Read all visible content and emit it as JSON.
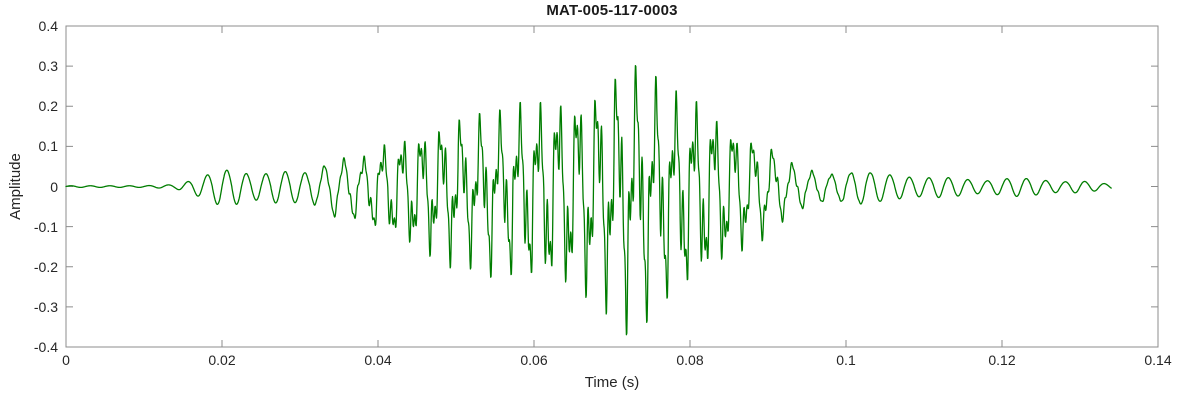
{
  "chart_data": {
    "type": "line",
    "title": "MAT-005-117-0003",
    "xlabel": "Time (s)",
    "ylabel": "Amplitude",
    "xlim": [
      0,
      0.14
    ],
    "ylim": [
      -0.4,
      0.4
    ],
    "x_ticks": [
      0,
      0.02,
      0.04,
      0.06,
      0.08,
      0.1,
      0.12,
      0.14
    ],
    "x_tick_labels": [
      "0",
      "0.02",
      "0.04",
      "0.06",
      "0.08",
      "0.1",
      "0.12",
      "0.14"
    ],
    "y_ticks": [
      -0.4,
      -0.3,
      -0.2,
      -0.1,
      0,
      0.1,
      0.2,
      0.3,
      0.4
    ],
    "y_tick_labels": [
      "-0.4",
      "-0.3",
      "-0.2",
      "-0.1",
      "0",
      "0.1",
      "0.2",
      "0.3",
      "0.4"
    ],
    "grid": false,
    "legend": null,
    "line_color": "#007d00",
    "axis_box_color": "#8c8c8c",
    "text_color": "#262626",
    "background": "#ffffff",
    "signal": {
      "description": "amplitude-modulated oscillatory burst (acoustic-emission-like waveform)",
      "duration_s": 0.134,
      "sample_step_s": 5e-05,
      "peak_positive": 0.32,
      "peak_negative": -0.39,
      "peak_time_s": 0.072,
      "quiet_until_s": 0.014,
      "envelope": [
        [
          0.0,
          0.004
        ],
        [
          0.01,
          0.004
        ],
        [
          0.014,
          0.01
        ],
        [
          0.016,
          0.03
        ],
        [
          0.018,
          0.06
        ],
        [
          0.02,
          0.09
        ],
        [
          0.022,
          0.08
        ],
        [
          0.024,
          0.06
        ],
        [
          0.026,
          0.07
        ],
        [
          0.028,
          0.08
        ],
        [
          0.03,
          0.07
        ],
        [
          0.032,
          0.08
        ],
        [
          0.034,
          0.12
        ],
        [
          0.036,
          0.13
        ],
        [
          0.038,
          0.12
        ],
        [
          0.04,
          0.16
        ],
        [
          0.042,
          0.17
        ],
        [
          0.044,
          0.19
        ],
        [
          0.046,
          0.2
        ],
        [
          0.048,
          0.21
        ],
        [
          0.05,
          0.23
        ],
        [
          0.052,
          0.22
        ],
        [
          0.054,
          0.25
        ],
        [
          0.056,
          0.24
        ],
        [
          0.058,
          0.27
        ],
        [
          0.06,
          0.28
        ],
        [
          0.062,
          0.3
        ],
        [
          0.064,
          0.31
        ],
        [
          0.066,
          0.32
        ],
        [
          0.068,
          0.33
        ],
        [
          0.07,
          0.36
        ],
        [
          0.072,
          0.4
        ],
        [
          0.074,
          0.38
        ],
        [
          0.076,
          0.34
        ],
        [
          0.078,
          0.31
        ],
        [
          0.08,
          0.3
        ],
        [
          0.082,
          0.28
        ],
        [
          0.084,
          0.25
        ],
        [
          0.086,
          0.22
        ],
        [
          0.088,
          0.19
        ],
        [
          0.09,
          0.17
        ],
        [
          0.092,
          0.12
        ],
        [
          0.094,
          0.09
        ],
        [
          0.096,
          0.07
        ],
        [
          0.098,
          0.06
        ],
        [
          0.1,
          0.07
        ],
        [
          0.102,
          0.08
        ],
        [
          0.104,
          0.07
        ],
        [
          0.106,
          0.06
        ],
        [
          0.108,
          0.05
        ],
        [
          0.11,
          0.045
        ],
        [
          0.112,
          0.05
        ],
        [
          0.114,
          0.045
        ],
        [
          0.116,
          0.035
        ],
        [
          0.118,
          0.03
        ],
        [
          0.12,
          0.04
        ],
        [
          0.122,
          0.045
        ],
        [
          0.124,
          0.04
        ],
        [
          0.126,
          0.03
        ],
        [
          0.128,
          0.025
        ],
        [
          0.13,
          0.03
        ],
        [
          0.132,
          0.02
        ],
        [
          0.134,
          0.012
        ]
      ],
      "hf_envelope": [
        [
          0.0,
          0.0
        ],
        [
          0.03,
          0.0
        ],
        [
          0.036,
          0.3
        ],
        [
          0.042,
          0.8
        ],
        [
          0.046,
          1.0
        ],
        [
          0.082,
          1.0
        ],
        [
          0.088,
          0.7
        ],
        [
          0.094,
          0.3
        ],
        [
          0.1,
          0.1
        ],
        [
          0.106,
          0.0
        ],
        [
          0.134,
          0.0
        ]
      ],
      "components": [
        {
          "freq_hz": 400,
          "amp": 0.55,
          "phase": 0.0
        },
        {
          "freq_hz": 1150,
          "amp": 0.27,
          "phase": 1.2
        },
        {
          "freq_hz": 2300,
          "amp": 0.18,
          "phase": 2.4
        }
      ],
      "positive_scale": 0.85,
      "negative_scale": 1.0,
      "clip": [
        -0.398,
        0.335
      ]
    }
  }
}
